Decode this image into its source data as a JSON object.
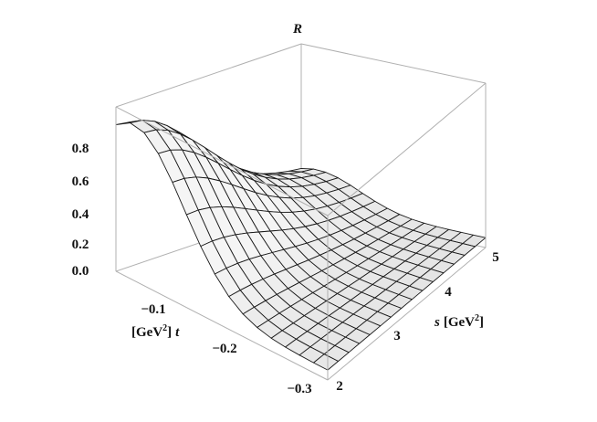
{
  "chart_data": {
    "type": "surface3d",
    "z_axis": {
      "label": "R",
      "ticks": [
        "0.0",
        "0.2",
        "0.4",
        "0.6",
        "0.8"
      ],
      "range": [
        0,
        1
      ]
    },
    "t_axis": {
      "label_unit": "[GeV",
      "label_sup": "2",
      "label_close": "]",
      "label_var": "t",
      "ticks": [
        "−0.1",
        "−0.2",
        "−0.3"
      ],
      "range": [
        -0.35,
        0
      ]
    },
    "s_axis": {
      "label_var": "s",
      "label_unit": "[GeV",
      "label_sup": "2",
      "label_close": "]",
      "ticks": [
        "2",
        "3",
        "4",
        "5"
      ],
      "range": [
        2,
        5
      ]
    },
    "peak": {
      "s": 2.0,
      "t": 0.0,
      "R": 0.95
    },
    "style": {
      "surface_color": "#e6e6e6",
      "mesh_color": "#1a1a1a",
      "box_color": "#b0b0b0"
    }
  }
}
